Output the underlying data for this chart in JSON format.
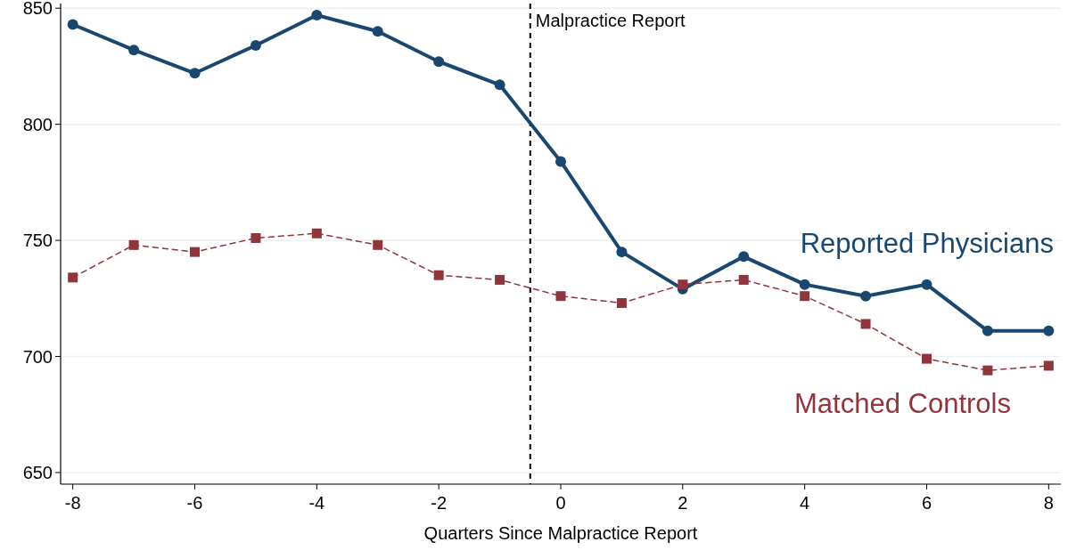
{
  "chart_data": {
    "type": "line",
    "xlabel": "Quarters Since Malpractice Report",
    "x": [
      -8,
      -7,
      -6,
      -5,
      -4,
      -3,
      -2,
      -1,
      0,
      1,
      2,
      3,
      4,
      5,
      6,
      7,
      8
    ],
    "series": [
      {
        "name": "Reported Physicians",
        "color": "#1a476f",
        "marker": "circle",
        "line_style": "solid",
        "values": [
          843,
          832,
          822,
          834,
          847,
          840,
          827,
          817,
          784,
          745,
          729,
          743,
          731,
          726,
          731,
          711,
          711
        ]
      },
      {
        "name": "Matched Controls",
        "color": "#90353b",
        "marker": "square",
        "line_style": "dashed",
        "values": [
          734,
          748,
          745,
          751,
          753,
          748,
          735,
          733,
          726,
          723,
          731,
          733,
          726,
          714,
          699,
          694,
          696
        ]
      }
    ],
    "xlim": [
      -8.2,
      8.2
    ],
    "xticks": [
      -8,
      -6,
      -4,
      -2,
      0,
      2,
      4,
      6,
      8
    ],
    "ylim": [
      645,
      852
    ],
    "yticks": [
      650,
      700,
      750,
      800,
      850
    ],
    "grid": "y",
    "ref_lines": [
      {
        "axis": "x",
        "value": -0.5,
        "label": "Malpractice Report",
        "color": "#000000",
        "line_style": "dashed"
      }
    ]
  }
}
